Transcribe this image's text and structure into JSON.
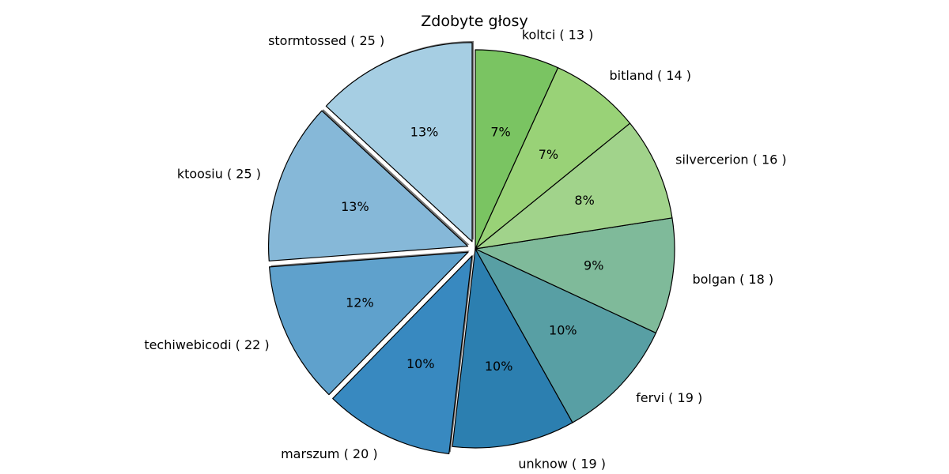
{
  "chart_data": {
    "type": "pie",
    "title": "Zdobyte głosy",
    "slices": [
      {
        "name": "stormtossed",
        "value": 25,
        "label": "stormtossed ( 25 )",
        "pct": "13%",
        "color": "#a6cee3",
        "exploded": true
      },
      {
        "name": "ktoosiu",
        "value": 25,
        "label": "ktoosiu ( 25 )",
        "pct": "13%",
        "color": "#86b8d8",
        "exploded": true
      },
      {
        "name": "techiwebicodi",
        "value": 22,
        "label": "techiwebicodi ( 22 )",
        "pct": "12%",
        "color": "#5fa1cc",
        "exploded": true
      },
      {
        "name": "marszum",
        "value": 20,
        "label": "marszum ( 20 )",
        "pct": "10%",
        "color": "#3889c0",
        "exploded": true
      },
      {
        "name": "unknow",
        "value": 19,
        "label": "unknow ( 19 )",
        "pct": "10%",
        "color": "#2c7fb0",
        "exploded": false
      },
      {
        "name": "fervi",
        "value": 19,
        "label": "fervi ( 19 )",
        "pct": "10%",
        "color": "#589fa4",
        "exploded": false
      },
      {
        "name": "bolgan",
        "value": 18,
        "label": "bolgan ( 18 )",
        "pct": "9%",
        "color": "#7fba9a",
        "exploded": false
      },
      {
        "name": "silvercerion",
        "value": 16,
        "label": "silvercerion ( 16 )",
        "pct": "8%",
        "color": "#a1d38b",
        "exploded": false
      },
      {
        "name": "bitland",
        "value": 14,
        "label": "bitland ( 14 )",
        "pct": "7%",
        "color": "#99d277",
        "exploded": false
      },
      {
        "name": "koltci",
        "value": 13,
        "label": "koltci ( 13 )",
        "pct": "7%",
        "color": "#7ac462",
        "exploded": false
      }
    ],
    "start_angle_deg": 90,
    "direction": "counterclockwise"
  }
}
